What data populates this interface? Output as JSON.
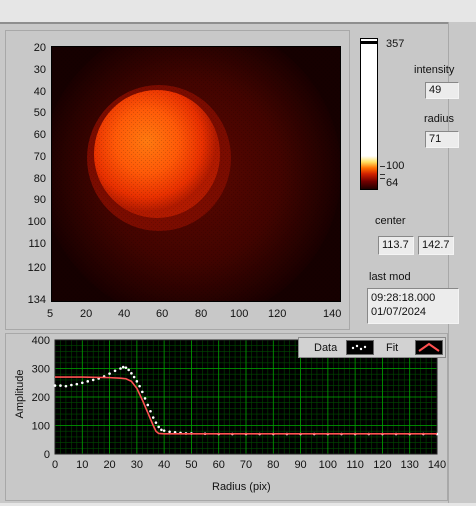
{
  "colors": {
    "image_bg": "#1a0000",
    "spot_outer": "#8a0a00",
    "spot_mid": "#e03000",
    "spot_core": "#ff9000",
    "plot_bg": "#000000",
    "grid": "#00a000",
    "data_color": "#ffffff",
    "fit_color": "#ff5050"
  },
  "image_display": {
    "y_ticks": [
      "20",
      "30",
      "40",
      "50",
      "60",
      "70",
      "80",
      "90",
      "100",
      "110",
      "120",
      "134"
    ],
    "x_ticks": [
      "5",
      "20",
      "40",
      "60",
      "80",
      "100",
      "120",
      "140"
    ]
  },
  "colorbar": {
    "max_label": "357",
    "mid_label": "100",
    "min_label": "64"
  },
  "side": {
    "intensity_label": "intensity",
    "intensity_value": "49",
    "radius_label": "radius",
    "radius_value": "71",
    "center_label": "center",
    "center_x": "113.7",
    "center_y": "142.7",
    "lastmod_label": "last mod",
    "lastmod_time": "09:28:18.000",
    "lastmod_date": "01/07/2024"
  },
  "legend": {
    "data_label": "Data",
    "fit_label": "Fit"
  },
  "chart_data": {
    "type": "line",
    "xlabel": "Radius (pix)",
    "ylabel": "Amplitude",
    "xlim": [
      0,
      140
    ],
    "ylim": [
      0,
      400
    ],
    "x_ticks": [
      "0",
      "10",
      "20",
      "30",
      "40",
      "50",
      "60",
      "70",
      "80",
      "90",
      "100",
      "110",
      "120",
      "130",
      "140"
    ],
    "y_ticks": [
      "0",
      "100",
      "200",
      "300",
      "400"
    ],
    "legend_position": "top-right",
    "grid": true,
    "series": [
      {
        "name": "Data",
        "style": "points",
        "x": [
          0,
          2,
          4,
          6,
          8,
          10,
          12,
          14,
          16,
          18,
          20,
          22,
          24,
          25,
          26,
          27,
          28,
          29,
          30,
          31,
          32,
          33,
          34,
          35,
          36,
          37,
          38,
          39,
          40,
          42,
          44,
          46,
          48,
          50,
          55,
          60,
          65,
          70,
          75,
          80,
          85,
          90,
          95,
          100,
          105,
          110,
          115,
          120,
          125,
          130,
          135,
          140
        ],
        "y": [
          240,
          240,
          238,
          242,
          245,
          250,
          255,
          260,
          265,
          272,
          282,
          292,
          300,
          305,
          303,
          295,
          283,
          270,
          255,
          238,
          218,
          195,
          172,
          150,
          128,
          110,
          95,
          85,
          82,
          78,
          76,
          74,
          72,
          72,
          71,
          70,
          70,
          70,
          70,
          70,
          70,
          70,
          70,
          70,
          70,
          70,
          70,
          70,
          70,
          70,
          70,
          70
        ]
      },
      {
        "name": "Fit",
        "style": "line",
        "x": [
          0,
          10,
          20,
          24,
          26,
          28,
          30,
          32,
          34,
          36,
          37,
          38,
          40,
          140
        ],
        "y": [
          270,
          270,
          268,
          266,
          264,
          255,
          230,
          190,
          145,
          100,
          80,
          72,
          71,
          71
        ]
      }
    ]
  }
}
